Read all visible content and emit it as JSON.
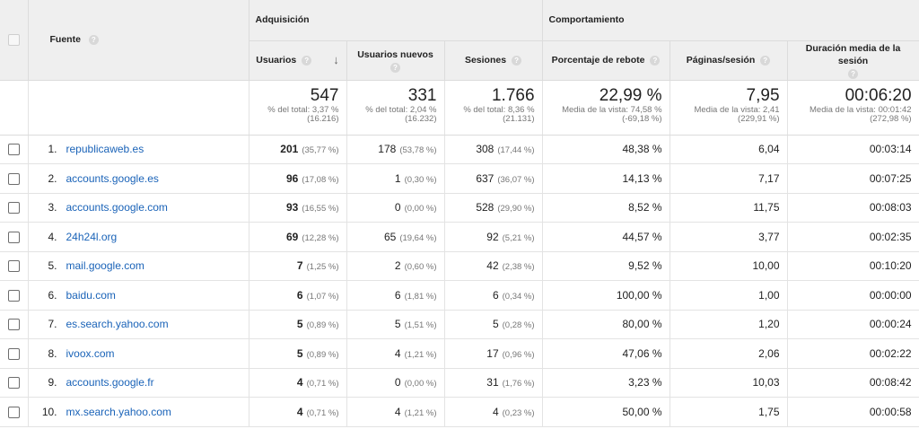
{
  "header": {
    "fuente": "Fuente",
    "adquisicion": "Adquisición",
    "comportamiento": "Comportamiento",
    "columns": {
      "usuarios": "Usuarios",
      "usuarios_nuevos": "Usuarios nuevos",
      "sesiones": "Sesiones",
      "rebote": "Porcentaje de rebote",
      "paginas": "Páginas/sesión",
      "duracion": "Duración media de la sesión"
    },
    "help_glyph": "?",
    "sort_glyph": "↓"
  },
  "totals": {
    "usuarios": {
      "value": "547",
      "line1": "% del total: 3,37 %",
      "line2": "(16.216)"
    },
    "usuarios_nuevos": {
      "value": "331",
      "line1": "% del total: 2,04 %",
      "line2": "(16.232)"
    },
    "sesiones": {
      "value": "1.766",
      "line1": "% del total: 8,36 %",
      "line2": "(21.131)"
    },
    "rebote": {
      "value": "22,99 %",
      "line1": "Media de la vista: 74,58 %",
      "line2": "(-69,18 %)"
    },
    "paginas": {
      "value": "7,95",
      "line1": "Media de la vista: 2,41",
      "line2": "(229,91 %)"
    },
    "duracion": {
      "value": "00:06:20",
      "line1": "Media de la vista: 00:01:42",
      "line2": "(272,98 %)"
    }
  },
  "rows": [
    {
      "idx": "1.",
      "source": "republicaweb.es",
      "users": "201",
      "users_pct": "(35,77 %)",
      "new": "178",
      "new_pct": "(53,78 %)",
      "sess": "308",
      "sess_pct": "(17,44 %)",
      "bounce": "48,38 %",
      "pages": "6,04",
      "dur": "00:03:14"
    },
    {
      "idx": "2.",
      "source": "accounts.google.es",
      "users": "96",
      "users_pct": "(17,08 %)",
      "new": "1",
      "new_pct": "(0,30 %)",
      "sess": "637",
      "sess_pct": "(36,07 %)",
      "bounce": "14,13 %",
      "pages": "7,17",
      "dur": "00:07:25"
    },
    {
      "idx": "3.",
      "source": "accounts.google.com",
      "users": "93",
      "users_pct": "(16,55 %)",
      "new": "0",
      "new_pct": "(0,00 %)",
      "sess": "528",
      "sess_pct": "(29,90 %)",
      "bounce": "8,52 %",
      "pages": "11,75",
      "dur": "00:08:03"
    },
    {
      "idx": "4.",
      "source": "24h24l.org",
      "users": "69",
      "users_pct": "(12,28 %)",
      "new": "65",
      "new_pct": "(19,64 %)",
      "sess": "92",
      "sess_pct": "(5,21 %)",
      "bounce": "44,57 %",
      "pages": "3,77",
      "dur": "00:02:35"
    },
    {
      "idx": "5.",
      "source": "mail.google.com",
      "users": "7",
      "users_pct": "(1,25 %)",
      "new": "2",
      "new_pct": "(0,60 %)",
      "sess": "42",
      "sess_pct": "(2,38 %)",
      "bounce": "9,52 %",
      "pages": "10,00",
      "dur": "00:10:20"
    },
    {
      "idx": "6.",
      "source": "baidu.com",
      "users": "6",
      "users_pct": "(1,07 %)",
      "new": "6",
      "new_pct": "(1,81 %)",
      "sess": "6",
      "sess_pct": "(0,34 %)",
      "bounce": "100,00 %",
      "pages": "1,00",
      "dur": "00:00:00"
    },
    {
      "idx": "7.",
      "source": "es.search.yahoo.com",
      "users": "5",
      "users_pct": "(0,89 %)",
      "new": "5",
      "new_pct": "(1,51 %)",
      "sess": "5",
      "sess_pct": "(0,28 %)",
      "bounce": "80,00 %",
      "pages": "1,20",
      "dur": "00:00:24"
    },
    {
      "idx": "8.",
      "source": "ivoox.com",
      "users": "5",
      "users_pct": "(0,89 %)",
      "new": "4",
      "new_pct": "(1,21 %)",
      "sess": "17",
      "sess_pct": "(0,96 %)",
      "bounce": "47,06 %",
      "pages": "2,06",
      "dur": "00:02:22"
    },
    {
      "idx": "9.",
      "source": "accounts.google.fr",
      "users": "4",
      "users_pct": "(0,71 %)",
      "new": "0",
      "new_pct": "(0,00 %)",
      "sess": "31",
      "sess_pct": "(1,76 %)",
      "bounce": "3,23 %",
      "pages": "10,03",
      "dur": "00:08:42"
    },
    {
      "idx": "10.",
      "source": "mx.search.yahoo.com",
      "users": "4",
      "users_pct": "(0,71 %)",
      "new": "4",
      "new_pct": "(1,21 %)",
      "sess": "4",
      "sess_pct": "(0,23 %)",
      "bounce": "50,00 %",
      "pages": "1,75",
      "dur": "00:00:58"
    }
  ],
  "colors": {
    "link": "#1a63b8",
    "header_bg": "#efefef",
    "muted": "#777777"
  }
}
